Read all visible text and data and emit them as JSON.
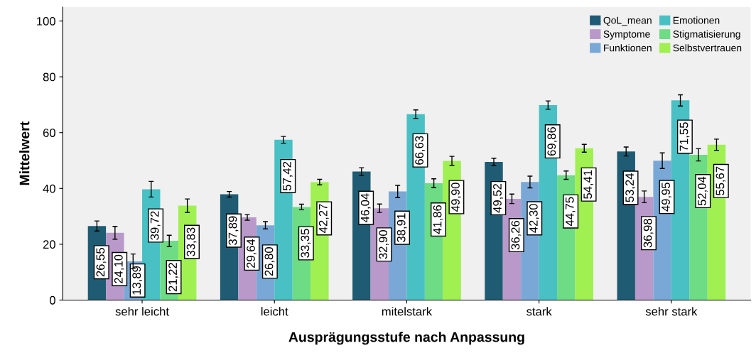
{
  "chart_data": {
    "type": "bar",
    "xlabel": "Ausprägungsstufe nach Anpassung",
    "ylabel": "Mittelwert",
    "categories": [
      "sehr leicht",
      "leicht",
      "mitelstark",
      "stark",
      "sehr stark"
    ],
    "series": [
      {
        "name": "QoL_mean",
        "color": "#1f5c73",
        "values": [
          26.55,
          37.89,
          46.04,
          49.52,
          53.24
        ],
        "errors": [
          1.8,
          1.0,
          1.4,
          1.3,
          1.6
        ],
        "value_labels": [
          "26,55",
          "37,89",
          "46,04",
          "49,52",
          "53,24"
        ]
      },
      {
        "name": "Symptome",
        "color": "#b899c9",
        "values": [
          24.1,
          29.64,
          32.9,
          36.26,
          36.98
        ],
        "errors": [
          2.3,
          1.0,
          1.5,
          1.7,
          2.1
        ],
        "value_labels": [
          "24,10",
          "29,64",
          "32,90",
          "36,26",
          "36,98"
        ]
      },
      {
        "name": "Funktionen",
        "color": "#7aa8d6",
        "values": [
          13.89,
          26.8,
          38.91,
          42.3,
          49.95
        ],
        "errors": [
          2.6,
          1.3,
          2.2,
          2.1,
          2.8
        ],
        "value_labels": [
          "13,89",
          "26,80",
          "38,91",
          "42,30",
          "49,95"
        ]
      },
      {
        "name": "Emotionen",
        "color": "#48c0c4",
        "values": [
          39.72,
          57.42,
          66.63,
          69.86,
          71.55
        ],
        "errors": [
          2.8,
          1.2,
          1.5,
          1.5,
          2.0
        ],
        "value_labels": [
          "39,72",
          "57,42",
          "66,63",
          "69,86",
          "71,55"
        ]
      },
      {
        "name": "Stigmatisierung",
        "color": "#6ddc85",
        "values": [
          21.22,
          33.35,
          41.86,
          44.75,
          52.04
        ],
        "errors": [
          2.0,
          1.0,
          1.6,
          1.5,
          2.2
        ],
        "value_labels": [
          "21,22",
          "33,35",
          "41,86",
          "44,75",
          "52,04"
        ]
      },
      {
        "name": "Selbstvertrauen",
        "color": "#9ff050",
        "values": [
          33.83,
          42.27,
          49.9,
          54.41,
          55.67
        ],
        "errors": [
          2.4,
          1.0,
          1.6,
          1.4,
          2.0
        ],
        "value_labels": [
          "33,83",
          "42,27",
          "49,90",
          "54,41",
          "55,67"
        ]
      }
    ],
    "ylim": [
      0,
      105
    ],
    "yticks": [
      0,
      20,
      40,
      60,
      80,
      100
    ],
    "grid": false,
    "legend": "top right"
  }
}
